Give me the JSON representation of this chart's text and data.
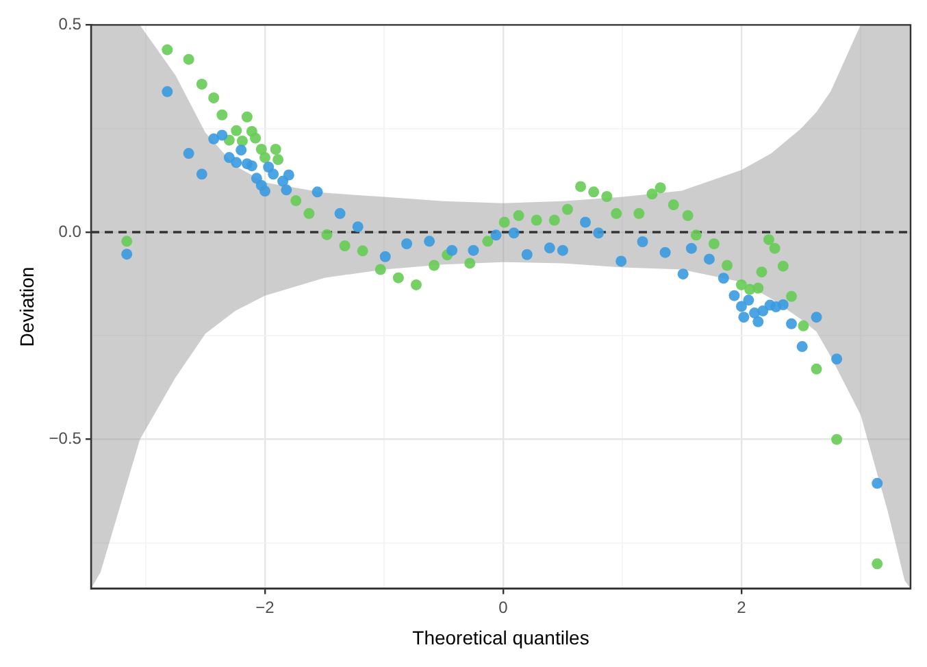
{
  "chart_data": {
    "type": "scatter",
    "xlabel": "Theoretical quantiles",
    "ylabel": "Deviation",
    "xlim": [
      -3.46,
      3.42
    ],
    "ylim": [
      -0.86,
      0.5
    ],
    "xticks": [
      {
        "value": -3,
        "label": null
      },
      {
        "value": -2,
        "label": "−2"
      },
      {
        "value": -1,
        "label": null
      },
      {
        "value": 0,
        "label": "0"
      },
      {
        "value": 1,
        "label": null
      },
      {
        "value": 2,
        "label": "2"
      },
      {
        "value": 3,
        "label": null
      }
    ],
    "yticks": [
      {
        "value": -0.75,
        "label": null
      },
      {
        "value": -0.5,
        "label": "−0.5"
      },
      {
        "value": -0.25,
        "label": null
      },
      {
        "value": 0,
        "label": "0.0"
      },
      {
        "value": 0.25,
        "label": null
      },
      {
        "value": 0.5,
        "label": "0.5"
      }
    ],
    "grid": true,
    "marker": "circle",
    "series": [
      {
        "type": "line",
        "color": "#333333",
        "line_style": "dashed",
        "marker": "none",
        "x": [
          -3.46,
          -3.38,
          -3.05,
          -2.75,
          -2.5,
          -2.25,
          -2,
          -1.5,
          -1,
          -0.5,
          0,
          0.5,
          1,
          1.5,
          2,
          2.25,
          2.5,
          2.63,
          2.75,
          3,
          3.23,
          3.37,
          3.42
        ],
        "values": [
          0,
          0,
          0,
          0,
          0,
          0,
          0,
          0,
          0,
          0,
          0,
          0,
          0,
          0,
          0,
          0,
          0,
          0,
          0,
          0,
          0,
          0,
          0
        ],
        "upper": [
          0.5,
          0.5,
          0.5,
          0.378,
          0.24,
          0.16,
          0.12,
          0.095,
          0.085,
          0.075,
          0.07,
          0.075,
          0.085,
          0.1,
          0.15,
          0.19,
          0.25,
          0.29,
          0.34,
          0.5,
          0.5,
          0.5,
          0.5
        ],
        "lower": [
          -0.86,
          -0.82,
          -0.5,
          -0.35,
          -0.245,
          -0.19,
          -0.153,
          -0.11,
          -0.09,
          -0.078,
          -0.072,
          -0.075,
          -0.085,
          -0.09,
          -0.12,
          -0.16,
          -0.21,
          -0.24,
          -0.3,
          -0.44,
          -0.675,
          -0.84,
          -0.86
        ]
      },
      {
        "color": "#66cc55",
        "x": [
          -3.16,
          -2.82,
          -2.64,
          -2.53,
          -2.43,
          -2.36,
          -2.3,
          -2.24,
          -2.19,
          -2.15,
          -2.11,
          -2.08,
          -2.03,
          -2.0,
          -1.96,
          -1.91,
          -1.89,
          -1.74,
          -1.63,
          -1.48,
          -1.33,
          -1.18,
          -1.03,
          -0.88,
          -0.73,
          -0.58,
          -0.47,
          -0.28,
          -0.13,
          0.01,
          0.13,
          0.28,
          0.43,
          0.54,
          0.65,
          0.76,
          0.87,
          0.95,
          1.14,
          1.25,
          1.32,
          1.43,
          1.55,
          1.62,
          1.77,
          1.88,
          2.0,
          2.07,
          2.14,
          2.17,
          2.23,
          2.28,
          2.35,
          2.42,
          2.52,
          2.63,
          2.8,
          3.14
        ],
        "values": [
          -0.022,
          0.44,
          0.417,
          0.357,
          0.324,
          0.283,
          0.222,
          0.245,
          0.22,
          0.278,
          0.243,
          0.227,
          0.2,
          0.18,
          null,
          0.2,
          0.175,
          0.076,
          0.045,
          -0.006,
          -0.033,
          -0.045,
          -0.09,
          -0.11,
          -0.127,
          -0.08,
          -0.055,
          -0.075,
          -0.022,
          0.024,
          0.04,
          0.029,
          0.029,
          0.055,
          0.11,
          0.097,
          0.086,
          0.045,
          0.045,
          0.092,
          0.107,
          0.066,
          0.04,
          -0.007,
          -0.028,
          -0.08,
          -0.127,
          -0.138,
          -0.135,
          -0.096,
          -0.018,
          -0.039,
          -0.082,
          -0.155,
          -0.226,
          -0.33,
          -0.5,
          -0.8
        ]
      },
      {
        "color": "#3a9ae0",
        "x": [
          -3.16,
          -2.82,
          -2.64,
          -2.53,
          -2.43,
          -2.36,
          -2.3,
          -2.24,
          -2.2,
          -2.15,
          -2.11,
          -2.07,
          -2.03,
          -2.0,
          -1.97,
          -1.93,
          -1.85,
          -1.82,
          -1.8,
          -1.56,
          -1.37,
          -1.22,
          -0.99,
          -0.81,
          -0.62,
          -0.43,
          -0.25,
          -0.06,
          0.09,
          0.2,
          0.39,
          0.5,
          0.69,
          0.8,
          0.99,
          1.17,
          1.36,
          1.51,
          1.58,
          1.73,
          1.85,
          1.94,
          2.0,
          2.02,
          2.06,
          2.11,
          2.14,
          2.18,
          2.24,
          2.29,
          2.35,
          2.42,
          2.51,
          2.63,
          2.8,
          3.14
        ],
        "values": [
          -0.053,
          0.339,
          0.19,
          0.14,
          0.225,
          0.234,
          0.18,
          0.168,
          0.198,
          0.165,
          0.16,
          0.13,
          0.113,
          0.099,
          0.157,
          0.14,
          0.123,
          0.102,
          0.138,
          0.097,
          0.045,
          0.013,
          -0.059,
          -0.028,
          -0.022,
          -0.044,
          -0.044,
          -0.007,
          -0.002,
          -0.054,
          -0.038,
          -0.044,
          0.024,
          -0.002,
          -0.07,
          -0.023,
          -0.049,
          -0.101,
          -0.039,
          -0.065,
          -0.111,
          -0.153,
          -0.179,
          -0.205,
          -0.164,
          -0.195,
          -0.216,
          -0.19,
          -0.176,
          -0.18,
          -0.175,
          -0.221,
          -0.276,
          -0.205,
          -0.306,
          -0.606
        ]
      }
    ]
  }
}
